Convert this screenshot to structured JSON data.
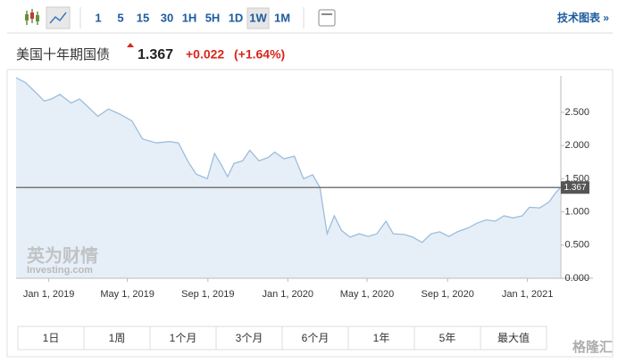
{
  "toolbar": {
    "intervals": [
      "1",
      "5",
      "15",
      "30",
      "1H",
      "5H",
      "1D",
      "1W",
      "1M"
    ],
    "active_index": 7,
    "link": "技术图表 »"
  },
  "header": {
    "name": "美国十年期国债",
    "price": "1.367",
    "change": "+0.022",
    "change_pct": "(+1.64%)"
  },
  "chart_data": {
    "type": "area",
    "color": "#9dbddc",
    "fill": "#e6eff7",
    "x": [
      "2018-11-12",
      "2018-11-26",
      "2018-12-12",
      "2018-12-25",
      "2019-01-05",
      "2019-01-18",
      "2019-02-04",
      "2019-02-17",
      "2019-02-28",
      "2019-03-17",
      "2019-04-02",
      "2019-04-20",
      "2019-05-08",
      "2019-05-24",
      "2019-06-14",
      "2019-07-04",
      "2019-07-18",
      "2019-08-01",
      "2019-08-14",
      "2019-08-31",
      "2019-09-11",
      "2019-09-22",
      "2019-10-01",
      "2019-10-11",
      "2019-10-24",
      "2019-11-04",
      "2019-11-18",
      "2019-12-02",
      "2019-12-12",
      "2019-12-26",
      "2020-01-11",
      "2020-01-25",
      "2020-02-08",
      "2020-02-19",
      "2020-03-01",
      "2020-03-12",
      "2020-03-23",
      "2020-04-05",
      "2020-04-19",
      "2020-05-03",
      "2020-05-16",
      "2020-05-30",
      "2020-06-10",
      "2020-06-27",
      "2020-07-10",
      "2020-07-24",
      "2020-08-07",
      "2020-08-20",
      "2020-09-03",
      "2020-09-16",
      "2020-10-03",
      "2020-10-16",
      "2020-10-30",
      "2020-11-13",
      "2020-11-26",
      "2020-12-10",
      "2020-12-24",
      "2021-01-04",
      "2021-01-20",
      "2021-02-03",
      "2021-02-11",
      "2021-02-20"
    ],
    "values": [
      3.02,
      2.95,
      2.8,
      2.67,
      2.7,
      2.77,
      2.64,
      2.7,
      2.6,
      2.44,
      2.55,
      2.47,
      2.37,
      2.1,
      2.04,
      2.06,
      2.04,
      1.77,
      1.57,
      1.5,
      1.88,
      1.7,
      1.53,
      1.73,
      1.77,
      1.93,
      1.77,
      1.82,
      1.9,
      1.8,
      1.84,
      1.5,
      1.56,
      1.37,
      0.67,
      0.94,
      0.72,
      0.62,
      0.67,
      0.63,
      0.67,
      0.86,
      0.67,
      0.66,
      0.62,
      0.54,
      0.67,
      0.7,
      0.63,
      0.7,
      0.76,
      0.83,
      0.88,
      0.86,
      0.94,
      0.91,
      0.94,
      1.07,
      1.06,
      1.15,
      1.26,
      1.367
    ],
    "xlim": [
      "2018-11-12",
      "2021-02-21"
    ],
    "xticks": [
      {
        "value": "2019-01-01",
        "label": "Jan 1, 2019"
      },
      {
        "value": "2019-05-01",
        "label": "May 1, 2019"
      },
      {
        "value": "2019-09-01",
        "label": "Sep 1, 2019"
      },
      {
        "value": "2020-01-01",
        "label": "Jan 1, 2020"
      },
      {
        "value": "2020-05-01",
        "label": "May 1, 2020"
      },
      {
        "value": "2020-09-01",
        "label": "Sep 1, 2020"
      },
      {
        "value": "2021-01-01",
        "label": "Jan 1, 2021"
      }
    ],
    "ylim": [
      0,
      3.05
    ],
    "yticks": [
      {
        "value": 0,
        "label": "0.000"
      },
      {
        "value": 0.5,
        "label": "0.500"
      },
      {
        "value": 1,
        "label": "1.000"
      },
      {
        "value": 1.5,
        "label": "1.500"
      },
      {
        "value": 2,
        "label": "2.000"
      },
      {
        "value": 2.5,
        "label": "2.500"
      }
    ],
    "watermark": "英为财情",
    "watermark_sub": "Investing.com"
  },
  "ranges": [
    "1日",
    "1周",
    "1个月",
    "3个月",
    "6个月",
    "1年",
    "5年",
    "最大值"
  ],
  "corner_watermark": "格隆汇"
}
